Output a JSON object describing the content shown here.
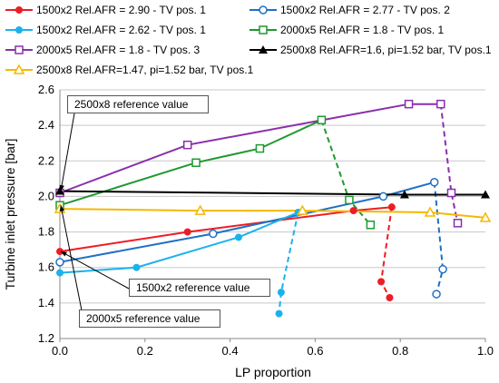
{
  "chart_data": {
    "type": "line",
    "xlabel": "LP proportion",
    "ylabel": "Turbine inlet pressure [bar]",
    "xlim": [
      0,
      1
    ],
    "ylim": [
      1.2,
      2.6
    ],
    "xticks": [
      "0.0",
      "0.2",
      "0.4",
      "0.6",
      "0.8",
      "1.0"
    ],
    "yticks": [
      "1.2",
      "1.4",
      "1.6",
      "1.8",
      "2.0",
      "2.2",
      "2.4",
      "2.6"
    ],
    "grid": "horizontal",
    "legend_position": "top",
    "series": [
      {
        "name": "1500x2 Rel.AFR = 2.90 - TV pos. 1",
        "color": "#ee1c25",
        "marker": "filled-circle",
        "solid": [
          [
            0.0,
            1.69
          ],
          [
            0.3,
            1.8
          ],
          [
            0.69,
            1.92
          ],
          [
            0.78,
            1.94
          ]
        ],
        "dashed": [
          [
            0.78,
            1.94
          ],
          [
            0.755,
            1.52
          ],
          [
            0.775,
            1.43
          ]
        ]
      },
      {
        "name": "1500x2 Rel.AFR = 2.77 - TV pos. 2",
        "color": "#1f6fc5",
        "marker": "open-circle",
        "solid": [
          [
            0.0,
            1.63
          ],
          [
            0.36,
            1.79
          ],
          [
            0.76,
            2.0
          ],
          [
            0.88,
            2.08
          ]
        ],
        "dashed": [
          [
            0.88,
            2.08
          ],
          [
            0.9,
            1.59
          ],
          [
            0.885,
            1.45
          ]
        ]
      },
      {
        "name": "1500x2 Rel.AFR = 2.62 - TV pos. 1",
        "color": "#1ab2ee",
        "marker": "filled-circle",
        "solid": [
          [
            0.0,
            1.57
          ],
          [
            0.18,
            1.6
          ],
          [
            0.42,
            1.77
          ],
          [
            0.56,
            1.91
          ]
        ],
        "dashed": [
          [
            0.56,
            1.91
          ],
          [
            0.52,
            1.46
          ],
          [
            0.515,
            1.34
          ]
        ]
      },
      {
        "name": "2000x5 Rel.AFR = 1.8 - TV pos. 1",
        "color": "#1e9a30",
        "marker": "open-square",
        "solid": [
          [
            0.0,
            1.95
          ],
          [
            0.32,
            2.19
          ],
          [
            0.47,
            2.27
          ],
          [
            0.615,
            2.43
          ]
        ],
        "dashed": [
          [
            0.615,
            2.43
          ],
          [
            0.68,
            1.98
          ],
          [
            0.73,
            1.84
          ]
        ]
      },
      {
        "name": "2000x5 Rel.AFR = 1.8 - TV pos. 3",
        "color": "#8a2fab",
        "marker": "open-square",
        "solid": [
          [
            0.0,
            2.02
          ],
          [
            0.3,
            2.29
          ],
          [
            0.82,
            2.52
          ],
          [
            0.895,
            2.52
          ]
        ],
        "dashed": [
          [
            0.895,
            2.52
          ],
          [
            0.92,
            2.02
          ],
          [
            0.935,
            1.85
          ]
        ]
      },
      {
        "name": "2500x8 Rel.AFR=1.6, pi=1.52 bar, TV pos.1",
        "color": "#000000",
        "marker": "filled-triangle",
        "solid": [
          [
            0.0,
            2.03
          ],
          [
            0.81,
            2.01
          ],
          [
            1.0,
            2.01
          ]
        ],
        "dashed": []
      },
      {
        "name": "2500x8 Rel.AFR=1.47, pi=1.52 bar, TV pos.1",
        "color": "#f5b800",
        "marker": "open-triangle",
        "solid": [
          [
            0.0,
            1.93
          ],
          [
            0.33,
            1.92
          ],
          [
            0.57,
            1.92
          ],
          [
            0.87,
            1.91
          ],
          [
            1.0,
            1.88
          ]
        ],
        "dashed": []
      }
    ],
    "reference_value": 2.0,
    "annotations": [
      {
        "text": "2500x8 reference value",
        "target": [
          0.0,
          2.03
        ]
      },
      {
        "text": "1500x2 reference value",
        "target": [
          0.0,
          1.69
        ]
      },
      {
        "text": "2000x5 reference value",
        "target": [
          0.0,
          1.95
        ]
      }
    ]
  }
}
